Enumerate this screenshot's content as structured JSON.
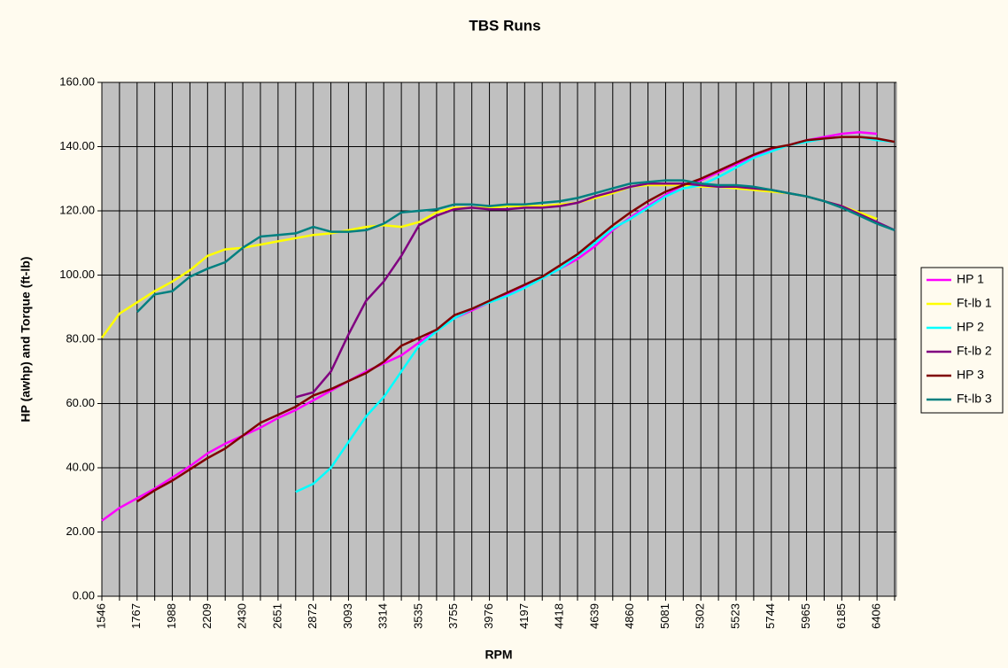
{
  "chart_data": {
    "type": "line",
    "title": "TBS Runs",
    "x_label": "RPM",
    "y_label": "HP (awhp) and Torque (ft-lb)",
    "categories": [
      "1546",
      null,
      "1767",
      null,
      "1988",
      null,
      "2209",
      null,
      "2430",
      null,
      "2651",
      null,
      "2872",
      null,
      "3093",
      null,
      "3314",
      null,
      "3535",
      null,
      "3755",
      null,
      "3976",
      null,
      "4197",
      null,
      "4418",
      null,
      "4639",
      null,
      "4860",
      null,
      "5081",
      null,
      "5302",
      null,
      "5523",
      null,
      "5744",
      null,
      "5965",
      null,
      "6185",
      null,
      "6406",
      null
    ],
    "ylim": [
      0,
      160
    ],
    "yticks": [
      {
        "value": 0,
        "label": "0.00"
      },
      {
        "value": 20,
        "label": "20.00"
      },
      {
        "value": 40,
        "label": "40.00"
      },
      {
        "value": 60,
        "label": "60.00"
      },
      {
        "value": 80,
        "label": "80.00"
      },
      {
        "value": 100,
        "label": "100.00"
      },
      {
        "value": 120,
        "label": "120.00"
      },
      {
        "value": 140,
        "label": "140.00"
      },
      {
        "value": 160,
        "label": "160.00"
      }
    ],
    "grid": true,
    "legend": "right",
    "series": [
      {
        "name": "HP 1",
        "color": "#ff00ff",
        "values": [
          23.5,
          27.5,
          30.5,
          33.5,
          37,
          40.5,
          44.5,
          47.5,
          50,
          52.5,
          55.5,
          58,
          61,
          64,
          67,
          70,
          72.5,
          75,
          79,
          83,
          86.5,
          89,
          91.5,
          94,
          96.5,
          99,
          102,
          105,
          109,
          114,
          118,
          121.5,
          125,
          128,
          129.5,
          132,
          134.5,
          137,
          139,
          140.5,
          142,
          143,
          144,
          144.5,
          144,
          null
        ]
      },
      {
        "name": "Ft-lb 1",
        "color": "#ffff00",
        "values": [
          80.5,
          88,
          91.5,
          95,
          98,
          101.5,
          106,
          108,
          108.5,
          109.5,
          110.5,
          111.5,
          112.5,
          113,
          114,
          115,
          115.5,
          115,
          116.5,
          119.5,
          121,
          121,
          121,
          121.5,
          121.5,
          121.5,
          122,
          122.5,
          124,
          125.5,
          127.5,
          128,
          128,
          128,
          127.5,
          127.5,
          127,
          126.5,
          126,
          125.5,
          124.5,
          123,
          121.5,
          119.5,
          117.5,
          null
        ]
      },
      {
        "name": "HP 2",
        "color": "#00ffff",
        "values": [
          null,
          null,
          null,
          null,
          null,
          null,
          null,
          null,
          null,
          null,
          null,
          32.5,
          35,
          40,
          48,
          56,
          62,
          70,
          78,
          82.5,
          86.5,
          89.5,
          91.5,
          93.5,
          96,
          99,
          102,
          106,
          110,
          114.5,
          117.5,
          121,
          124.5,
          127,
          128,
          130.5,
          133.5,
          136.5,
          138.5,
          140.5,
          141.5,
          142.5,
          143,
          143,
          142,
          141.5
        ]
      },
      {
        "name": "Ft-lb 2",
        "color": "#800080",
        "values": [
          null,
          null,
          null,
          null,
          null,
          null,
          null,
          null,
          null,
          null,
          null,
          62,
          63.5,
          70,
          81.5,
          92,
          98,
          106,
          115.5,
          118.5,
          120.5,
          121,
          120.5,
          120.5,
          121,
          121,
          121.5,
          122.5,
          124.5,
          126,
          127.5,
          128.5,
          128.5,
          128.5,
          128,
          127.5,
          127.5,
          127,
          126.5,
          125.5,
          124.5,
          123,
          121.5,
          119,
          116.5,
          114
        ]
      },
      {
        "name": "HP 3",
        "color": "#800000",
        "values": [
          null,
          null,
          29.5,
          33,
          36,
          39.5,
          43,
          46,
          50,
          54,
          56.5,
          59,
          62.5,
          64.5,
          67,
          69.5,
          73,
          78,
          80.5,
          83,
          87.5,
          89.5,
          92,
          94.5,
          97,
          99.5,
          103,
          106.5,
          111,
          115.5,
          119.5,
          123,
          126,
          128,
          130,
          132.5,
          135,
          137.5,
          139.5,
          140.5,
          142,
          142.5,
          143,
          143,
          142.5,
          141.5
        ]
      },
      {
        "name": "Ft-lb 3",
        "color": "#008080",
        "values": [
          null,
          null,
          88.5,
          94,
          95,
          99.5,
          102,
          104,
          108.5,
          112,
          112.5,
          113,
          115,
          113.5,
          113.5,
          114,
          116,
          119.5,
          120,
          120.5,
          122,
          122,
          121.5,
          122,
          122,
          122.5,
          123,
          124,
          125.5,
          127,
          128.5,
          129,
          129.5,
          129.5,
          128.5,
          128,
          128,
          127.5,
          126.5,
          125.5,
          124.5,
          123,
          121,
          118.5,
          116,
          114
        ]
      }
    ]
  }
}
